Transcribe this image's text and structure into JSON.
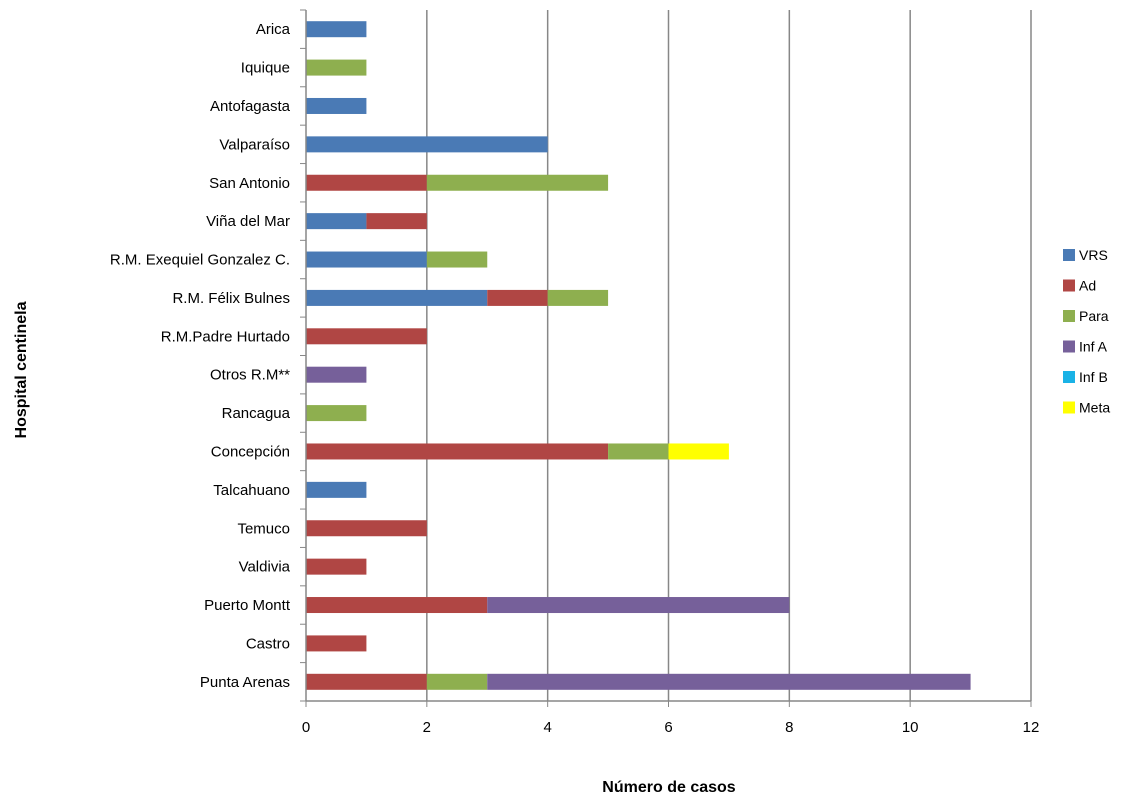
{
  "chart_data": {
    "type": "bar",
    "orientation": "horizontal",
    "stacked": true,
    "xlabel": "Número de casos",
    "ylabel": "Hospital  centinela",
    "xlim": [
      0,
      12
    ],
    "xticks": [
      "0",
      "2",
      "4",
      "6",
      "8",
      "10",
      "12"
    ],
    "grid": "vertical",
    "legend_position": "right",
    "categories": [
      "Arica",
      "Iquique",
      "Antofagasta",
      "Valparaíso",
      "San Antonio",
      "Viña del Mar",
      "R.M. Exequiel Gonzalez C.",
      "R.M. Félix Bulnes",
      "R.M.Padre Hurtado",
      "Otros R.M**",
      "Rancagua",
      "Concepción",
      "Talcahuano",
      "Temuco",
      "Valdivia",
      "Puerto Montt",
      "Castro",
      "Punta Arenas"
    ],
    "series": [
      {
        "name": "VRS",
        "color": "#4a7ab5",
        "values": [
          1,
          0,
          1,
          4,
          0,
          1,
          2,
          3,
          0,
          0,
          0,
          0,
          1,
          0,
          0,
          0,
          0,
          0
        ]
      },
      {
        "name": "Ad",
        "color": "#b04644",
        "values": [
          0,
          0,
          0,
          0,
          2,
          1,
          0,
          1,
          2,
          0,
          0,
          5,
          0,
          2,
          1,
          3,
          1,
          2
        ]
      },
      {
        "name": "Para",
        "color": "#8eaf4f",
        "values": [
          0,
          1,
          0,
          0,
          3,
          0,
          1,
          1,
          0,
          0,
          1,
          1,
          0,
          0,
          0,
          0,
          0,
          1
        ]
      },
      {
        "name": "Inf A",
        "color": "#76609a",
        "values": [
          0,
          0,
          0,
          0,
          0,
          0,
          0,
          0,
          0,
          1,
          0,
          0,
          0,
          0,
          0,
          5,
          0,
          8
        ]
      },
      {
        "name": "Inf B",
        "color": "#1ab2e6",
        "values": [
          0,
          0,
          0,
          0,
          0,
          0,
          0,
          0,
          0,
          0,
          0,
          0,
          0,
          0,
          0,
          0,
          0,
          0
        ]
      },
      {
        "name": "Meta",
        "color": "#ffff00",
        "values": [
          0,
          0,
          0,
          0,
          0,
          0,
          0,
          0,
          0,
          0,
          0,
          1,
          0,
          0,
          0,
          0,
          0,
          0
        ]
      }
    ]
  }
}
